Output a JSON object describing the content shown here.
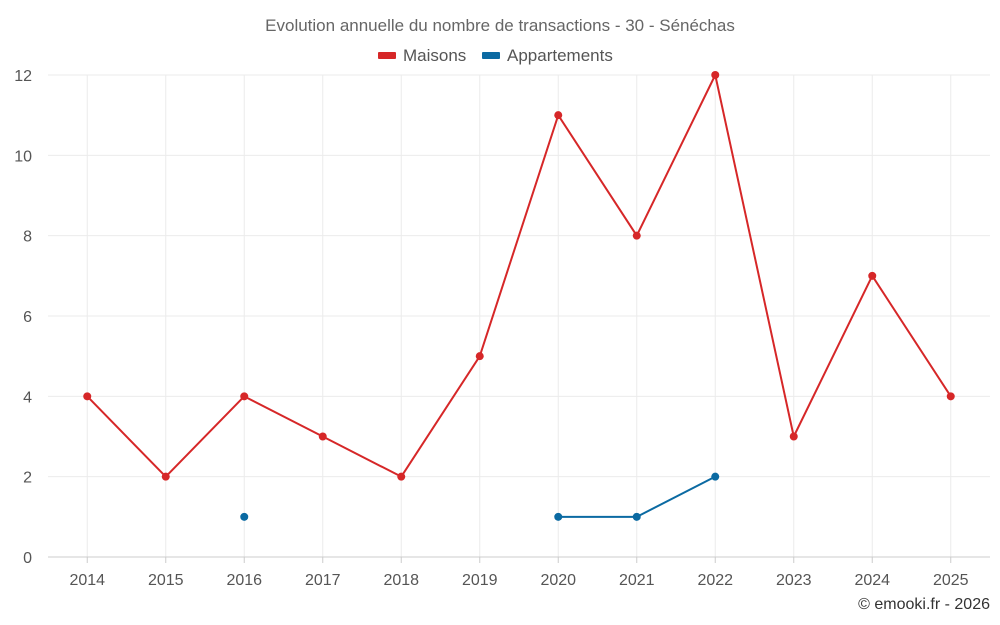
{
  "chart_data": {
    "type": "line",
    "title": "Evolution annuelle du nombre de transactions - 30 - Sénéchas",
    "categories": [
      "2014",
      "2015",
      "2016",
      "2017",
      "2018",
      "2019",
      "2020",
      "2021",
      "2022",
      "2023",
      "2024",
      "2025"
    ],
    "series": [
      {
        "name": "Maisons",
        "color": "#d62728",
        "values": [
          4,
          2,
          4,
          3,
          2,
          5,
          11,
          8,
          12,
          3,
          7,
          4
        ]
      },
      {
        "name": "Appartements",
        "color": "#0b6aa2",
        "values": [
          null,
          null,
          1,
          null,
          null,
          null,
          1,
          1,
          2,
          null,
          null,
          null
        ]
      }
    ],
    "ylim": [
      0,
      12
    ],
    "yticks": [
      0,
      2,
      4,
      6,
      8,
      10,
      12
    ],
    "xlabel": "",
    "ylabel": "",
    "legend_position": "top-center",
    "grid": true,
    "credit": "© emooki.fr - 2026"
  }
}
